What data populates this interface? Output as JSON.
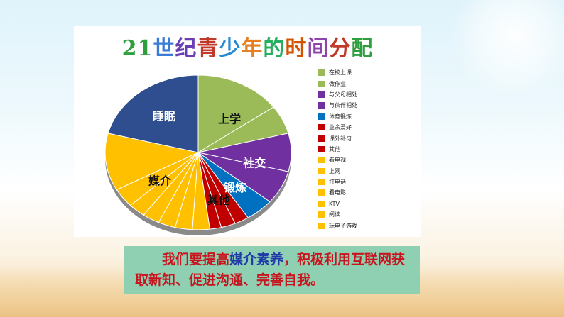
{
  "slide": {
    "title": "21世纪青少年的时间分配",
    "message": {
      "before": "我们要提高",
      "highlight": "媒介素养",
      "after": "，积极利用互联网获取新知、促进沟通、完善自我。"
    }
  },
  "chart_data": {
    "type": "pie",
    "title": "21世纪青少年的时间分配",
    "slices": [
      {
        "label": "在校上课",
        "value": 15,
        "color": "#9bbb59"
      },
      {
        "label": "做作业",
        "value": 6,
        "color": "#9bbb59"
      },
      {
        "label": "与父母相处",
        "value": 8,
        "color": "#7030a0"
      },
      {
        "label": "与伙伴相处",
        "value": 7,
        "color": "#7030a0"
      },
      {
        "label": "体育锻炼",
        "value": 5,
        "color": "#0070c0"
      },
      {
        "label": "业余爱好",
        "value": 2.5,
        "color": "#c00000"
      },
      {
        "label": "课外补习",
        "value": 2.5,
        "color": "#c00000"
      },
      {
        "label": "其他",
        "value": 2,
        "color": "#c00000"
      },
      {
        "label": "看电视",
        "value": 3,
        "color": "#ffc000"
      },
      {
        "label": "上网",
        "value": 3,
        "color": "#ffc000"
      },
      {
        "label": "打电话",
        "value": 3,
        "color": "#ffc000"
      },
      {
        "label": "看电影",
        "value": 3,
        "color": "#ffc000"
      },
      {
        "label": "KTV",
        "value": 3,
        "color": "#ffc000"
      },
      {
        "label": "阅读",
        "value": 4,
        "color": "#ffc000"
      },
      {
        "label": "玩电子游戏",
        "value": 12,
        "color": "#ffc000"
      },
      {
        "label": "",
        "value": 21,
        "color": "#2e4e8f"
      }
    ],
    "group_labels": [
      {
        "text": "上学"
      },
      {
        "text": "社交"
      },
      {
        "text": "锻炼"
      },
      {
        "text": "其他"
      },
      {
        "text": "媒介"
      },
      {
        "text": "睡眠"
      }
    ],
    "legend_position": "right"
  }
}
